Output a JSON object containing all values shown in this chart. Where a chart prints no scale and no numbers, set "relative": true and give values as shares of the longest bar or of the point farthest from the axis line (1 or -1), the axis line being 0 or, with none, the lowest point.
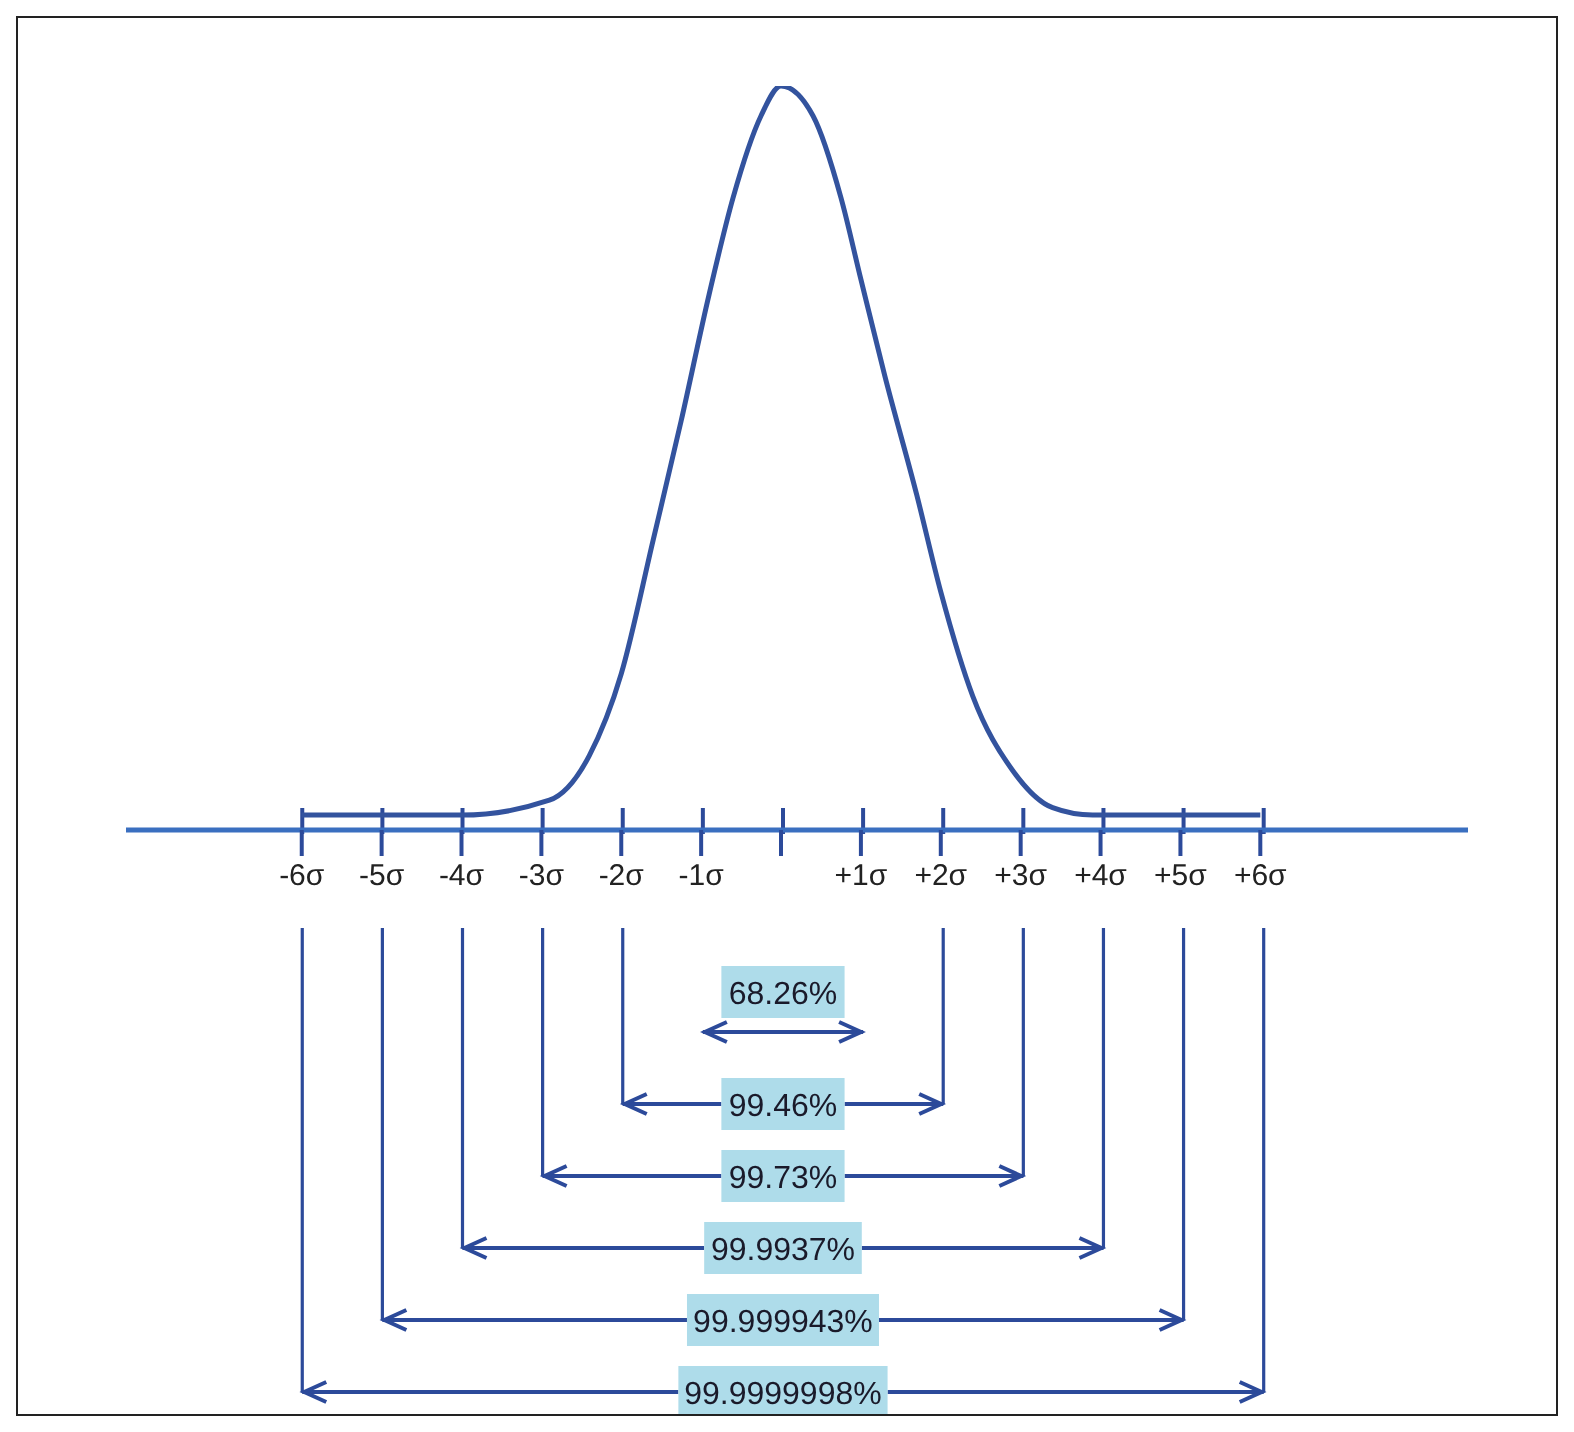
{
  "chart_data": {
    "type": "line",
    "relative": true,
    "x": [
      -6,
      -4,
      -2.9,
      -2.4,
      -2.0,
      -1.6,
      -1.25,
      -0.9,
      -0.6,
      -0.25,
      0,
      0.4,
      0.75,
      1.0,
      1.3,
      1.7,
      2.0,
      2.4,
      2.9,
      3.4,
      3.9,
      6
    ],
    "series": [
      {
        "color": "#33539e",
        "values": [
          0.02,
          0.02,
          0.04,
          0.1,
          0.21,
          0.39,
          0.55,
          0.72,
          0.85,
          0.96,
          1,
          0.96,
          0.85,
          0.74,
          0.61,
          0.45,
          0.32,
          0.18,
          0.08,
          0.03,
          0.02,
          0.02
        ]
      }
    ],
    "xlim": [
      -8.2,
      8.6
    ],
    "xticks": [
      {
        "value": -6,
        "label": "-6σ"
      },
      {
        "value": -5,
        "label": "-5σ"
      },
      {
        "value": -4,
        "label": "-4σ"
      },
      {
        "value": -3,
        "label": "-3σ"
      },
      {
        "value": -2,
        "label": "-2σ"
      },
      {
        "value": -1,
        "label": "-1σ"
      },
      {
        "value": 0,
        "label": null
      },
      {
        "value": 1,
        "label": "+1σ"
      },
      {
        "value": 2,
        "label": "+2σ"
      },
      {
        "value": 3,
        "label": "+3σ"
      },
      {
        "value": 4,
        "label": "+4σ"
      },
      {
        "value": 5,
        "label": "+5σ"
      },
      {
        "value": 6,
        "label": "+6σ"
      }
    ],
    "annotations": [
      "68.26%",
      "99.46%",
      "99.73%",
      "99.9937%",
      "99.999943%",
      "99.9999998%"
    ]
  }
}
